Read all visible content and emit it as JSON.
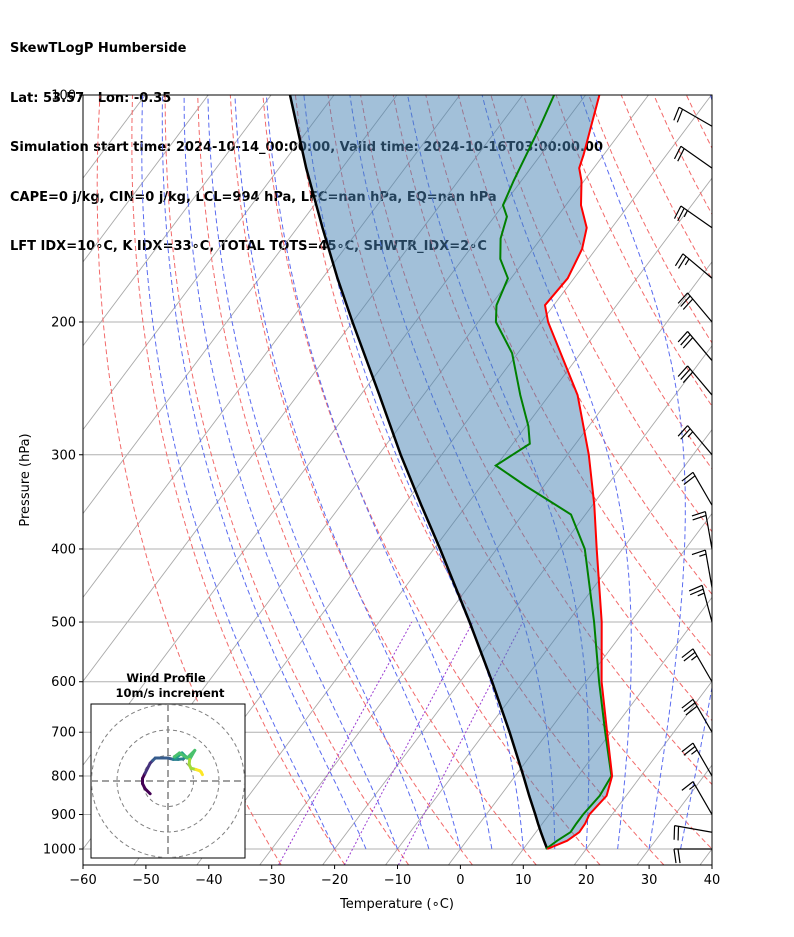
{
  "header": {
    "line1": "SkewTLogP Humberside",
    "line2": "Lat: 53.57   Lon: -0.35",
    "line3": "Simulation start time: 2024-10-14_00:00:00, Valid time: 2024-10-16T03:00:00.00",
    "line4": "CAPE=0 j/kg, CIN=0 j/kg, LCL=994 hPa, LFC=nan hPa, EQ=nan hPa",
    "line5": "LFT IDX=10∘C, K IDX=33∘C, TOTAL TOTS=45∘C, SHWTR_IDX=2∘C"
  },
  "chart_data": {
    "type": "line",
    "subtype": "skew-t log-p",
    "xlabel": "Temperature (∘C)",
    "ylabel": "Pressure (hPa)",
    "xlim": [
      -60,
      40
    ],
    "ylim": [
      1050,
      100
    ],
    "yscale": "log",
    "x_ticks": [
      -60,
      -50,
      -40,
      -30,
      -20,
      -10,
      0,
      10,
      20,
      30,
      40
    ],
    "x_tick_labels": [
      "−60",
      "−50",
      "−40",
      "−30",
      "−20",
      "−10",
      "0",
      "10",
      "20",
      "30",
      "40"
    ],
    "y_ticks": [
      1000,
      900,
      800,
      700,
      600,
      500,
      400,
      300,
      200,
      100
    ],
    "grid": true,
    "series": [
      {
        "role": "temperature",
        "color": "#ff0000",
        "pressure": [
          1000,
          975,
          950,
          925,
          900,
          850,
          800,
          700,
          600,
          500,
          400,
          350,
          300,
          250,
          200,
          190,
          175,
          160,
          150,
          140,
          130,
          125,
          120,
          110,
          100
        ],
        "temperature": [
          13.8,
          16.0,
          16.9,
          16.8,
          16.4,
          16.9,
          15.4,
          9.4,
          2.5,
          -4.6,
          -14.1,
          -19.7,
          -26.6,
          -35.5,
          -48.9,
          -51.4,
          -51.0,
          -52.2,
          -54.0,
          -57.6,
          -60.4,
          -62.3,
          -63.2,
          -65.4,
          -67.8
        ]
      },
      {
        "role": "dewpoint",
        "color": "#008000",
        "pressure": [
          1000,
          975,
          950,
          925,
          900,
          850,
          800,
          700,
          600,
          500,
          400,
          360,
          330,
          310,
          290,
          275,
          250,
          220,
          200,
          190,
          175,
          165,
          155,
          145,
          140,
          130,
          110,
          100
        ],
        "temperature": [
          13.6,
          14.4,
          15.5,
          15.4,
          15.4,
          15.8,
          15.3,
          9.1,
          2.1,
          -5.8,
          -16.0,
          -22.3,
          -32.9,
          -40.1,
          -37.3,
          -39.6,
          -44.6,
          -50.9,
          -57.2,
          -59.1,
          -60.5,
          -64.0,
          -66.4,
          -68.0,
          -70.0,
          -71.2,
          -73.5,
          -75.0
        ]
      },
      {
        "role": "parcel",
        "color": "#000000",
        "pressure": [
          1000,
          975,
          950,
          925,
          900,
          850,
          800,
          700,
          600,
          500,
          400,
          350,
          300,
          250,
          200,
          175,
          150,
          125,
          100
        ],
        "temperature": [
          13.8,
          12.3,
          10.8,
          9.3,
          7.8,
          4.6,
          1.3,
          -6.1,
          -14.9,
          -25.6,
          -39.0,
          -47.2,
          -56.5,
          -67.0,
          -80.0,
          -87.6,
          -96.0,
          -105.7,
          -117.0
        ]
      }
    ],
    "wind_barbs_kt": [
      {
        "p": 1000,
        "speed": 20,
        "dir": 270
      },
      {
        "p": 950,
        "speed": 20,
        "dir": 280
      },
      {
        "p": 900,
        "speed": 15,
        "dir": 330
      },
      {
        "p": 800,
        "speed": 25,
        "dir": 330
      },
      {
        "p": 700,
        "speed": 30,
        "dir": 330
      },
      {
        "p": 600,
        "speed": 25,
        "dir": 330
      },
      {
        "p": 500,
        "speed": 25,
        "dir": 345
      },
      {
        "p": 450,
        "speed": 15,
        "dir": 350
      },
      {
        "p": 400,
        "speed": 20,
        "dir": 350
      },
      {
        "p": 350,
        "speed": 20,
        "dir": 330
      },
      {
        "p": 300,
        "speed": 25,
        "dir": 320
      },
      {
        "p": 250,
        "speed": 30,
        "dir": 320
      },
      {
        "p": 225,
        "speed": 30,
        "dir": 320
      },
      {
        "p": 200,
        "speed": 30,
        "dir": 320
      },
      {
        "p": 175,
        "speed": 25,
        "dir": 310
      },
      {
        "p": 150,
        "speed": 25,
        "dir": 305
      },
      {
        "p": 125,
        "speed": 20,
        "dir": 305
      },
      {
        "p": 110,
        "speed": 20,
        "dir": 300
      }
    ],
    "inset": {
      "title_line1": "Wind Profile",
      "title_line2": "10m/s increment",
      "rings_ms": [
        10,
        20,
        30
      ],
      "hodograph_uv": [
        [
          -7,
          -5
        ],
        [
          -9,
          -3
        ],
        [
          -10,
          -1
        ],
        [
          -10,
          1
        ],
        [
          -9,
          3
        ],
        [
          -8,
          5
        ],
        [
          -7,
          7
        ],
        [
          -6,
          8
        ],
        [
          -5,
          9
        ],
        [
          -3,
          9
        ],
        [
          0,
          9
        ],
        [
          2,
          8.5
        ],
        [
          4,
          8.5
        ],
        [
          6,
          8.7
        ],
        [
          7,
          9.5
        ],
        [
          5.5,
          11
        ],
        [
          3,
          9
        ],
        [
          2.5,
          9.5
        ],
        [
          4.5,
          11
        ],
        [
          7.5,
          9
        ],
        [
          10.5,
          12
        ],
        [
          8.5,
          8.5
        ],
        [
          8.3,
          6.5
        ],
        [
          9,
          5
        ],
        [
          11,
          4.5
        ],
        [
          12.5,
          4
        ],
        [
          13,
          3.5
        ],
        [
          13.5,
          2.5
        ]
      ]
    }
  }
}
